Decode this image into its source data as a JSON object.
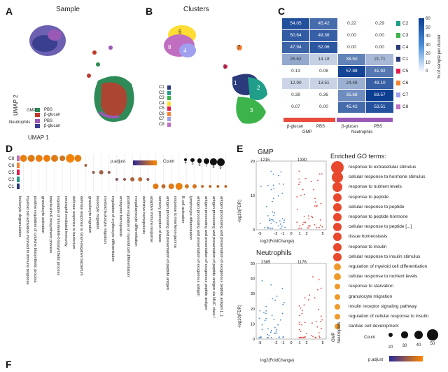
{
  "panels": {
    "A": "A",
    "B": "B",
    "C": "C",
    "D": "D",
    "E": "E",
    "F": "F"
  },
  "panel_a": {
    "title": "Sample",
    "xlabel": "UMAP 1",
    "ylabel": "UMAP 2",
    "legend": {
      "groups": [
        {
          "name": "GMP",
          "items": [
            {
              "label": "PBS",
              "color": "#2e8b57"
            },
            {
              "label": "β-glucan",
              "color": "#c0392b"
            }
          ]
        },
        {
          "name": "Neutrophils",
          "items": [
            {
              "label": "PBS",
              "color": "#9b59b6"
            },
            {
              "label": "β-glucan",
              "color": "#3a3f8f"
            }
          ]
        }
      ]
    }
  },
  "panel_b": {
    "title": "Clusters",
    "clusters": [
      {
        "label": "C1",
        "color": "#2a3a7a"
      },
      {
        "label": "C2",
        "color": "#1f9e89"
      },
      {
        "label": "C3",
        "color": "#3cb44b"
      },
      {
        "label": "C4",
        "color": "#ffdd33"
      },
      {
        "label": "C5",
        "color": "#e6194b"
      },
      {
        "label": "C6",
        "color": "#f58231"
      },
      {
        "label": "C7",
        "color": "#a0a0f0"
      },
      {
        "label": "C8",
        "color": "#c06fc0"
      }
    ],
    "cluster_annotations": [
      "6",
      "8",
      "4",
      "1",
      "7",
      "2",
      "5",
      "3"
    ]
  },
  "panel_c": {
    "rows": [
      "C2",
      "C3",
      "C4",
      "C1",
      "C5",
      "C6",
      "C7",
      "C8"
    ],
    "row_colors": [
      "#1f9e89",
      "#3cb44b",
      "#2a3a7a",
      "#2a3a7a",
      "#e6194b",
      "#f58231",
      "#a0a0f0",
      "#c06fc0"
    ],
    "columns": [
      "β-glucan",
      "PBS",
      "β-glucan",
      "PBS"
    ],
    "column_groups": [
      {
        "name": "GMP",
        "color": "#e74c3c"
      },
      {
        "name": "Neutrophils",
        "color": "#9b59b6"
      }
    ],
    "values": [
      [
        "54.05",
        "45.42",
        "0.22",
        "0.29"
      ],
      [
        "50.64",
        "49.36",
        "0.00",
        "0.00"
      ],
      [
        "47.94",
        "52.06",
        "0.00",
        "0.00"
      ],
      [
        "26.62",
        "14.18",
        "38.50",
        "21.71"
      ],
      [
        "0.13",
        "0.08",
        "57.88",
        "41.92"
      ],
      [
        "12.90",
        "13.51",
        "24.48",
        "49.10"
      ],
      [
        "0.39",
        "0.36",
        "35.68",
        "63.57"
      ],
      [
        "0.07",
        "0.00",
        "45.42",
        "53.51"
      ]
    ],
    "colorbar": {
      "label": "% of sample per cluster",
      "ticks": [
        "60",
        "50",
        "40",
        "30",
        "20",
        "10",
        "0"
      ]
    }
  },
  "panel_d": {
    "rows": [
      "C8",
      "C6",
      "C5",
      "C2",
      "C1"
    ],
    "row_colors": [
      "#c06fc0",
      "#f58231",
      "#e6194b",
      "#1f9e89",
      "#2a3a7a"
    ],
    "legend_padjust": {
      "label": "p.adjust",
      "ticks": [
        "0.005",
        "0.010",
        "0.020"
      ]
    },
    "legend_count": {
      "label": "Count",
      "values": [
        "4",
        "5",
        "6",
        "7",
        "8",
        "9"
      ]
    },
    "terms": [
      "leukocyte degranulation",
      "myeloid cell activation involved in immune response",
      "positive regulation of cytokine biosynthetic process",
      "granulocyte activation",
      "interleukin-6 biosynthetic process",
      "regulation of interleukin-6 biosynthetic process",
      "neutrophil mediated immunity",
      "defense response to bacterium",
      "defense response to Gram-negative bacterium",
      "granulocyte migration",
      "leukocyte migration",
      "myeloid leukocyte migration",
      "regulation of erythrocyte differentiation",
      "embryonic hemopoiesis",
      "positive regulation of myeloid cell differentiation",
      "megakaryocyte differentiation",
      "definitive hemopoiesis",
      "adaptive immune response",
      "sensory perception of taste",
      "antigen processing and presentation of peptide antigen",
      "response to interferon-gamma",
      "B cell activation",
      "lymphocyte differentiation",
      "antigen processing and presentation of exogenous antigen",
      "antigen processing and presentation of exogenous peptide antigen",
      "antigen processing and presentation of peptide antigen via MHC class I",
      "antigen processing and presentation of exogenous peptide antigen [...]"
    ]
  },
  "panel_e": {
    "gmp": {
      "title": "GMP",
      "down": "1215",
      "up": "1330"
    },
    "neutrophils": {
      "title": "Neutrophils",
      "down": "2385",
      "up": "1176"
    },
    "ylabel": "-log10(FDR)",
    "xlabel": "log2(FoldChange)",
    "gmp_yticks": [
      "20",
      "10",
      "0"
    ],
    "neu_yticks": [
      "50",
      "40",
      "30",
      "20",
      "10",
      "0"
    ],
    "xticks": [
      "-5",
      "-2",
      "-1",
      "0",
      "1",
      "2",
      "5"
    ],
    "enriched_title": "Enriched GO terms:",
    "go_terms": [
      "response to extracellular stimulus",
      "cellular response to hormone stimulus",
      "response to nutrient levels",
      "response to peptide",
      "cellular response to peptide",
      "response to peptide hormone",
      "cellular response to peptide [...]",
      "tissue homeostasis",
      "response to insulin",
      "cellular response to insulin stimulus",
      "regulation of myeloid cell differentiation",
      "cellular response to nutrient levels",
      "response to starvation",
      "granulocyte migration",
      "insulin receptor signaling pathway",
      "regulation of cellular response to insulin",
      "cardiac cell development"
    ],
    "go_xlabels": [
      "GMP",
      "Neutrophils"
    ],
    "count_legend": {
      "label": "Count",
      "values": [
        "20",
        "30",
        "40",
        "50"
      ]
    },
    "padjust_legend": {
      "label": "p.adjust",
      "ticks": [
        "0.025",
        "0.050"
      ]
    }
  }
}
